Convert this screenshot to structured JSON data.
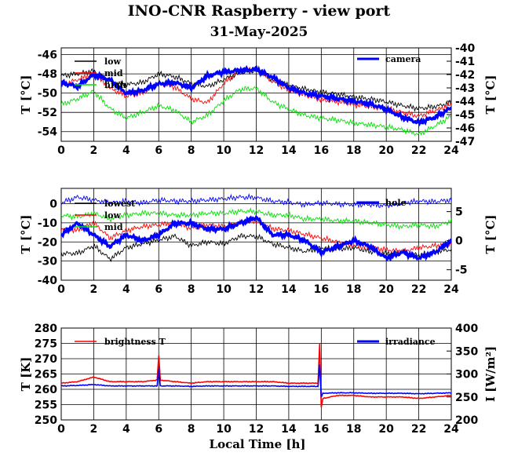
{
  "title": "INO-CNR Raspberry - view port",
  "subtitle": "31-May-2025",
  "xlabel": "Local Time [h]",
  "colors": {
    "low": "#000000",
    "mid": "#ff0000",
    "high": "#00e000",
    "camera": "#0000ff",
    "red": "#ff0000",
    "blue": "#0000ff"
  },
  "chart_data": [
    {
      "type": "line",
      "xlim": [
        0,
        24
      ],
      "xticks": [
        "0",
        "2",
        "4",
        "6",
        "8",
        "10",
        "12",
        "14",
        "16",
        "18",
        "20",
        "22",
        "24"
      ],
      "ylabel": "T [°C]",
      "ylim": [
        -55,
        -45.3
      ],
      "yticks": [
        "-46",
        "-48",
        "-50",
        "-52",
        "-54"
      ],
      "y2label": "T [°C]",
      "y2lim": [
        -47,
        -40
      ],
      "y2ticks": [
        "-40",
        "-41",
        "-42",
        "-43",
        "-44",
        "-45",
        "-46",
        "-47"
      ],
      "legend_left": [
        "low",
        "mid",
        "high"
      ],
      "legend_right": [
        "camera"
      ],
      "series": [
        {
          "name": "low",
          "axis": "left",
          "color": "#000000",
          "x": [
            0,
            1,
            2,
            3,
            4,
            5,
            6,
            7,
            8,
            9,
            10,
            11,
            12,
            13,
            14,
            15,
            16,
            17,
            18,
            19,
            20,
            21,
            22,
            23,
            24
          ],
          "y": [
            -48.2,
            -48.0,
            -47.7,
            -48.8,
            -49.1,
            -48.9,
            -48.0,
            -48.3,
            -49.0,
            -49.3,
            -48.6,
            -47.9,
            -47.6,
            -48.6,
            -49.2,
            -49.6,
            -49.9,
            -50.1,
            -50.4,
            -50.6,
            -50.9,
            -51.3,
            -51.6,
            -51.4,
            -51.0
          ]
        },
        {
          "name": "mid",
          "axis": "left",
          "color": "#ff0000",
          "x": [
            0,
            1,
            2,
            3,
            4,
            5,
            6,
            7,
            8,
            9,
            10,
            11,
            12,
            13,
            14,
            15,
            16,
            17,
            18,
            19,
            20,
            21,
            22,
            23,
            24
          ],
          "y": [
            -49.2,
            -48.6,
            -48.0,
            -49.5,
            -50.3,
            -50.0,
            -49.0,
            -49.4,
            -50.6,
            -51.0,
            -49.0,
            -47.6,
            -47.4,
            -48.8,
            -49.7,
            -50.2,
            -50.7,
            -50.9,
            -51.2,
            -51.4,
            -51.6,
            -52.0,
            -52.4,
            -51.8,
            -51.2
          ]
        },
        {
          "name": "high",
          "axis": "left",
          "color": "#00e000",
          "x": [
            0,
            1,
            2,
            3,
            4,
            5,
            6,
            7,
            8,
            9,
            10,
            11,
            12,
            13,
            14,
            15,
            16,
            17,
            18,
            19,
            20,
            21,
            22,
            23,
            24
          ],
          "y": [
            -51.2,
            -50.6,
            -49.8,
            -51.6,
            -52.6,
            -52.0,
            -51.3,
            -51.8,
            -53.0,
            -52.3,
            -50.8,
            -49.6,
            -49.5,
            -50.9,
            -51.7,
            -52.3,
            -52.6,
            -52.8,
            -53.1,
            -53.3,
            -53.5,
            -53.8,
            -54.3,
            -53.4,
            -52.4
          ]
        },
        {
          "name": "camera",
          "axis": "right",
          "color": "#0000ff",
          "x": [
            0,
            1,
            2,
            3,
            4,
            5,
            6,
            7,
            8,
            9,
            10,
            11,
            12,
            13,
            14,
            15,
            16,
            17,
            18,
            19,
            20,
            21,
            22,
            23,
            24
          ],
          "y": [
            -42.6,
            -42.9,
            -42.0,
            -42.4,
            -43.4,
            -43.2,
            -42.7,
            -42.6,
            -43.0,
            -42.1,
            -41.8,
            -41.7,
            -41.6,
            -42.2,
            -43.0,
            -43.4,
            -43.6,
            -43.8,
            -44.0,
            -44.2,
            -44.6,
            -45.2,
            -45.6,
            -45.2,
            -44.5
          ]
        }
      ]
    },
    {
      "type": "line",
      "xlim": [
        0,
        24
      ],
      "xticks": [
        "0",
        "2",
        "4",
        "6",
        "8",
        "10",
        "12",
        "14",
        "16",
        "18",
        "20",
        "22",
        "24"
      ],
      "ylabel": "T [°C]",
      "ylim": [
        -40,
        8
      ],
      "yticks": [
        "0",
        "-10",
        "-20",
        "-30",
        "-40"
      ],
      "y2label": "T [°C]",
      "y2lim": [
        -6.8,
        9
      ],
      "y2ticks": [
        "5",
        "0",
        "-5"
      ],
      "legend_left": [
        "lowest",
        "low",
        "mid"
      ],
      "legend_right": [
        "hole"
      ],
      "series": [
        {
          "name": "lowest",
          "axis": "left",
          "color": "#000000",
          "x": [
            0,
            1,
            2,
            3,
            4,
            5,
            6,
            7,
            8,
            9,
            10,
            11,
            12,
            13,
            14,
            15,
            16,
            17,
            18,
            19,
            20,
            21,
            22,
            23,
            24
          ],
          "y": [
            -26,
            -26,
            -22,
            -29,
            -23,
            -21,
            -19,
            -17,
            -22,
            -20,
            -21,
            -17,
            -17,
            -21,
            -23,
            -25,
            -23,
            -24,
            -23,
            -25,
            -26,
            -25,
            -27,
            -25,
            -24
          ]
        },
        {
          "name": "low",
          "axis": "left",
          "color": "#ff0000",
          "x": [
            0,
            1,
            2,
            3,
            4,
            5,
            6,
            7,
            8,
            9,
            10,
            11,
            12,
            13,
            14,
            15,
            16,
            17,
            18,
            19,
            20,
            21,
            22,
            23,
            24
          ],
          "y": [
            -13,
            -14,
            -10,
            -18,
            -14,
            -12,
            -11,
            -10,
            -13,
            -11,
            -12,
            -10,
            -9,
            -13,
            -14,
            -16,
            -18,
            -20,
            -22,
            -23,
            -24,
            -25,
            -23,
            -22,
            -21
          ]
        },
        {
          "name": "mid",
          "axis": "left",
          "color": "#00e000",
          "x": [
            0,
            1,
            2,
            3,
            4,
            5,
            6,
            7,
            8,
            9,
            10,
            11,
            12,
            13,
            14,
            15,
            16,
            17,
            18,
            19,
            20,
            21,
            22,
            23,
            24
          ],
          "y": [
            -6,
            -7,
            -5,
            -8,
            -6,
            -5,
            -5,
            -6,
            -6,
            -5,
            -5,
            -4,
            -4,
            -6,
            -6,
            -8,
            -8,
            -9,
            -9,
            -10,
            -11,
            -12,
            -11,
            -12,
            -9
          ]
        },
        {
          "name": "hole",
          "axis": "right",
          "color": "#0000ff",
          "x": [
            0,
            1,
            2,
            3,
            4,
            5,
            6,
            7,
            8,
            9,
            10,
            11,
            12,
            13,
            14,
            15,
            16,
            17,
            18,
            19,
            20,
            21,
            22,
            23,
            24
          ],
          "y": [
            6.5,
            7.5,
            7.0,
            6.5,
            6.8,
            6.5,
            7.0,
            6.8,
            6.8,
            7.0,
            7.2,
            7.5,
            7.4,
            6.8,
            6.6,
            6.2,
            6.5,
            6.3,
            6.2,
            6.2,
            6.0,
            6.5,
            6.8,
            6.7,
            7.0
          ]
        },
        {
          "name": "hole-thick",
          "axis": "right",
          "color": "#0000ff",
          "x": [
            0,
            1,
            2,
            3,
            4,
            5,
            6,
            7,
            8,
            9,
            10,
            11,
            12,
            13,
            14,
            15,
            16,
            17,
            18,
            19,
            20,
            21,
            22,
            23,
            24
          ],
          "y": [
            1,
            3,
            1,
            -1,
            1,
            0,
            1,
            3,
            3,
            2,
            2,
            3,
            4,
            1,
            1,
            0,
            -2,
            -1,
            0,
            -1,
            -3,
            -2,
            -3,
            -2,
            0
          ]
        }
      ]
    },
    {
      "type": "line",
      "xlim": [
        0,
        24
      ],
      "xticks": [
        "0",
        "2",
        "4",
        "6",
        "8",
        "10",
        "12",
        "14",
        "16",
        "18",
        "20",
        "22",
        "24"
      ],
      "ylabel": "T [K]",
      "ylim": [
        250,
        280
      ],
      "yticks": [
        "280",
        "275",
        "270",
        "265",
        "260",
        "255",
        "250"
      ],
      "y2label": "I [W/m²]",
      "y2lim": [
        200,
        400
      ],
      "y2ticks": [
        "400",
        "350",
        "300",
        "250",
        "200"
      ],
      "legend_left": [
        "brightness T"
      ],
      "legend_right": [
        "irradiance"
      ],
      "series": [
        {
          "name": "brightness T",
          "axis": "left",
          "color": "#ff0000",
          "x": [
            0,
            1,
            2,
            3,
            4,
            5,
            5.9,
            6,
            6.1,
            7,
            8,
            9,
            10,
            11,
            12,
            13,
            14,
            15,
            15.8,
            15.9,
            16,
            16.1,
            17,
            18,
            19,
            20,
            21,
            22,
            23,
            24
          ],
          "y": [
            262,
            262.5,
            264,
            262.5,
            262.5,
            262.5,
            263,
            271,
            263,
            262.5,
            262,
            262.5,
            262.5,
            262.5,
            262.5,
            262.5,
            262,
            262,
            262,
            275,
            254,
            257,
            258,
            258,
            257.5,
            257.5,
            257.5,
            257,
            257.5,
            258
          ]
        },
        {
          "name": "irradiance",
          "axis": "right",
          "color": "#0000ff",
          "x": [
            0,
            1,
            2,
            3,
            4,
            5,
            5.9,
            6,
            6.1,
            7,
            8,
            9,
            10,
            11,
            12,
            13,
            14,
            15,
            15.8,
            15.9,
            16,
            16.1,
            17,
            18,
            19,
            20,
            21,
            22,
            23,
            24
          ],
          "y": [
            274,
            275,
            277,
            274,
            274,
            274,
            274,
            310,
            274,
            274,
            273,
            274,
            274,
            274,
            274,
            274,
            273,
            273,
            273,
            320,
            250,
            258,
            259,
            259,
            258,
            258,
            258,
            257,
            258,
            259
          ]
        }
      ]
    }
  ]
}
